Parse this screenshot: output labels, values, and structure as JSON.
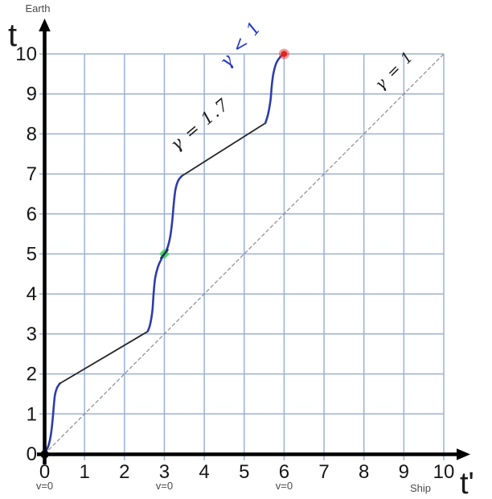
{
  "labels": {
    "earth": "Earth",
    "t_axis": "t",
    "ship": "Ship",
    "t_prime_axis": "t'"
  },
  "colors": {
    "background": "#ffffff",
    "axis": "#000000",
    "grid": "#9cb0dc",
    "diagonal": "#8c8c8c",
    "worldline_blue": "#2e3cae",
    "worldline_black": "#262626",
    "green_marker": "#49d45e",
    "red_marker": "#e02420",
    "blue_ink": "#2838c8",
    "tick_text": "#161616",
    "small_text": "#4a4a4a"
  },
  "chart_data": {
    "type": "line",
    "title": "",
    "xlabel": "t' (Ship)",
    "ylabel": "t (Earth)",
    "xlim": [
      0,
      10
    ],
    "ylim": [
      0,
      10
    ],
    "grid": true,
    "legend_position": "none",
    "x_ticks": [
      0,
      1,
      2,
      3,
      4,
      5,
      6,
      7,
      8,
      9,
      10
    ],
    "y_ticks": [
      0,
      1,
      2,
      3,
      4,
      5,
      6,
      7,
      8,
      9,
      10
    ],
    "series": [
      {
        "name": "reference-diagonal-gamma-1",
        "color": "#8c8c8c",
        "width": 1.2,
        "dashed": true,
        "smooth": false,
        "points": [
          [
            0,
            0
          ],
          [
            10,
            10
          ]
        ]
      },
      {
        "name": "worldline-accel-leg-1",
        "color": "#2e3cae",
        "width": 2.6,
        "dashed": false,
        "smooth": true,
        "points": [
          [
            0,
            0
          ],
          [
            0.1,
            0.22
          ],
          [
            0.16,
            0.5
          ],
          [
            0.2,
            0.85
          ],
          [
            0.23,
            1.2
          ],
          [
            0.26,
            1.48
          ],
          [
            0.31,
            1.65
          ],
          [
            0.38,
            1.76
          ]
        ]
      },
      {
        "name": "worldline-coast-gamma-1.7-leg-1",
        "color": "#262626",
        "width": 1.8,
        "dashed": false,
        "smooth": false,
        "points": [
          [
            0.38,
            1.76
          ],
          [
            2.58,
            3.06
          ]
        ]
      },
      {
        "name": "worldline-turnaround-v0",
        "color": "#2e3cae",
        "width": 2.6,
        "dashed": false,
        "smooth": true,
        "points": [
          [
            2.58,
            3.06
          ],
          [
            2.64,
            3.22
          ],
          [
            2.7,
            3.58
          ],
          [
            2.73,
            4.0
          ],
          [
            2.77,
            4.4
          ],
          [
            2.84,
            4.68
          ],
          [
            2.93,
            4.88
          ],
          [
            3.0,
            5.0
          ],
          [
            3.08,
            5.16
          ],
          [
            3.15,
            5.45
          ],
          [
            3.2,
            5.85
          ],
          [
            3.24,
            6.3
          ],
          [
            3.28,
            6.62
          ],
          [
            3.35,
            6.84
          ],
          [
            3.44,
            6.95
          ]
        ]
      },
      {
        "name": "worldline-coast-gamma-1.7-leg-2",
        "color": "#262626",
        "width": 1.8,
        "dashed": false,
        "smooth": false,
        "points": [
          [
            3.44,
            6.95
          ],
          [
            5.53,
            8.27
          ]
        ]
      },
      {
        "name": "worldline-decel-arrival",
        "color": "#2e3cae",
        "width": 2.6,
        "dashed": false,
        "smooth": true,
        "points": [
          [
            5.53,
            8.27
          ],
          [
            5.6,
            8.5
          ],
          [
            5.66,
            8.85
          ],
          [
            5.69,
            9.2
          ],
          [
            5.73,
            9.5
          ],
          [
            5.8,
            9.76
          ],
          [
            5.9,
            9.92
          ],
          [
            6.0,
            10.0
          ]
        ]
      }
    ],
    "markers": [
      {
        "name": "turnaround-marker",
        "shape": "diamond",
        "x": 3,
        "y": 5,
        "color": "#49d45e",
        "size": 6.5
      },
      {
        "name": "arrival-marker",
        "shape": "dot",
        "x": 6,
        "y": 10,
        "color": "#e02420",
        "size": 5
      }
    ],
    "annotations": [
      {
        "name": "gamma-coast-label",
        "text": "γ = 1.7",
        "x": 3.98,
        "y": 8.13,
        "rotation": -40,
        "color": "#1c1c1c",
        "size": 21
      },
      {
        "name": "gamma-diagonal-label",
        "text": "γ = 1",
        "x": 8.85,
        "y": 9.5,
        "rotation": -45,
        "color": "#1c1c1c",
        "size": 19
      },
      {
        "name": "gamma-blue-note",
        "text": "γ < 1",
        "x": 5.02,
        "y": 10.15,
        "rotation": -50,
        "color": "#2838c8",
        "size": 22
      }
    ],
    "v_labels": [
      {
        "text": "v=0",
        "x": 0
      },
      {
        "text": "v=0",
        "x": 3
      },
      {
        "text": "v=0",
        "x": 6
      }
    ]
  }
}
